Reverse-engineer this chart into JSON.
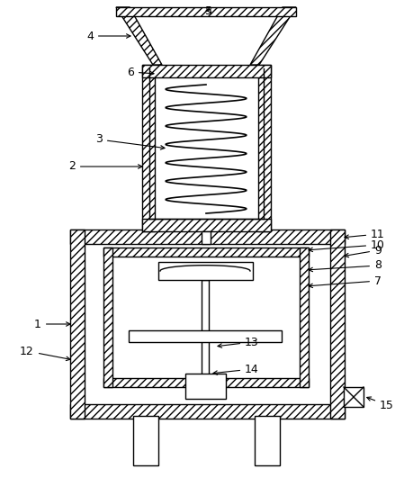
{
  "background_color": "#ffffff",
  "line_color": "#000000",
  "figsize": [
    4.6,
    5.31
  ],
  "dpi": 100
}
